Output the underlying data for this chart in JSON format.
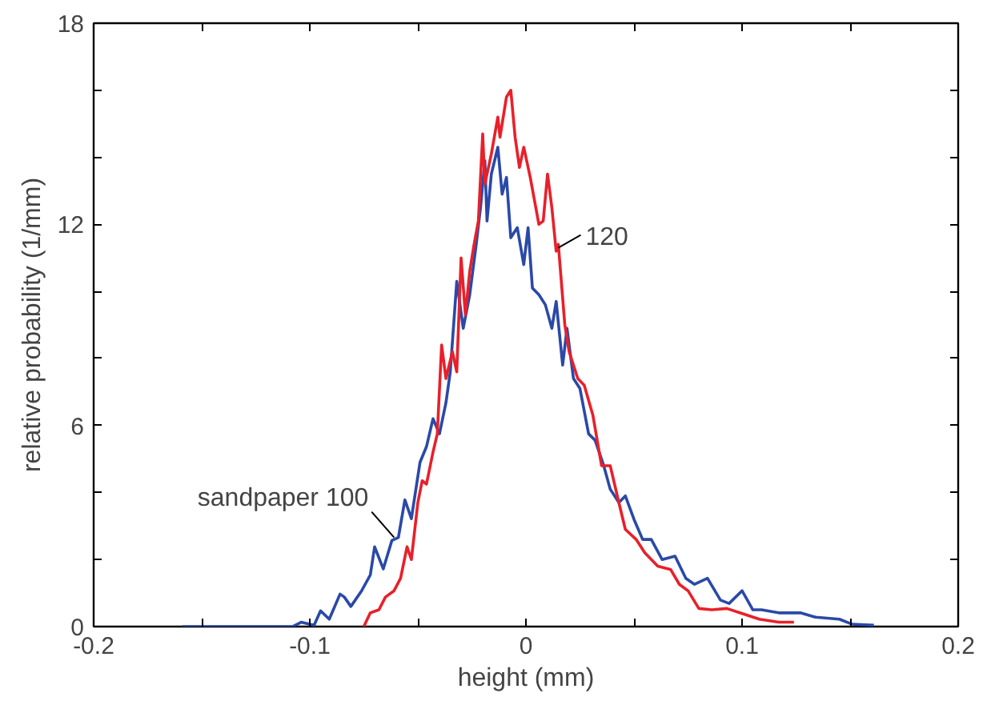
{
  "chart_data": {
    "type": "line",
    "xlabel": "height (mm)",
    "ylabel": "relative probability (1/mm)",
    "xlim": [
      -0.2,
      0.2
    ],
    "ylim": [
      0,
      18
    ],
    "xticks": [
      -0.2,
      {
        "value": -0.15,
        "label": null
      },
      -0.1,
      {
        "value": -0.05,
        "label": null
      },
      0,
      {
        "value": 0.05,
        "label": null
      },
      0.1,
      {
        "value": 0.15,
        "label": null
      },
      0.2
    ],
    "yticks": [
      0,
      {
        "value": 2,
        "label": null
      },
      {
        "value": 4,
        "label": null
      },
      6,
      {
        "value": 8,
        "label": null
      },
      {
        "value": 10,
        "label": null
      },
      12,
      {
        "value": 14,
        "label": null
      },
      {
        "value": 16,
        "label": null
      },
      18
    ],
    "line_style": "solid",
    "annotations": [
      {
        "text": "sandpaper 100",
        "x": -0.061,
        "y": 2.66
      },
      {
        "text": "120",
        "x": 0.015,
        "y": 11.3
      }
    ],
    "series": [
      {
        "color": "#2a49a8",
        "x": [
          -0.159,
          -0.108,
          -0.104,
          -0.098,
          -0.095,
          -0.091,
          -0.086,
          -0.084,
          -0.081,
          -0.076,
          -0.072,
          -0.07,
          -0.066,
          -0.062,
          -0.059,
          -0.056,
          -0.053,
          -0.049,
          -0.046,
          -0.043,
          -0.04,
          -0.037,
          -0.035,
          -0.032,
          -0.029,
          -0.026,
          -0.023,
          -0.021,
          -0.019,
          -0.018,
          -0.016,
          -0.013,
          -0.011,
          -0.009,
          -0.007,
          -0.004,
          -0.001,
          0.001,
          0.003,
          0.006,
          0.009,
          0.012,
          0.014,
          0.017,
          0.019,
          0.022,
          0.025,
          0.029,
          0.032,
          0.036,
          0.039,
          0.043,
          0.046,
          0.05,
          0.054,
          0.058,
          0.063,
          0.069,
          0.074,
          0.078,
          0.084,
          0.09,
          0.094,
          0.1,
          0.105,
          0.109,
          0.117,
          0.127,
          0.134,
          0.145,
          0.151,
          0.161
        ],
        "values": [
          0,
          0,
          0.13,
          0.04,
          0.47,
          0.22,
          0.97,
          0.88,
          0.6,
          1.07,
          1.54,
          2.38,
          1.72,
          2.57,
          2.66,
          3.78,
          3.22,
          4.9,
          5.37,
          6.2,
          5.75,
          6.68,
          7.6,
          10.3,
          8.9,
          9.9,
          11.4,
          12.5,
          13.9,
          12.1,
          13.5,
          14.3,
          12.9,
          13.4,
          11.6,
          11.9,
          10.8,
          11.9,
          10.1,
          9.9,
          9.6,
          8.9,
          9.7,
          7.8,
          8.9,
          7.4,
          7.1,
          5.75,
          5.56,
          4.8,
          4.1,
          3.7,
          3.9,
          3.2,
          2.6,
          2.6,
          2.0,
          2.1,
          1.44,
          1.26,
          1.44,
          0.79,
          0.69,
          1.07,
          0.5,
          0.5,
          0.41,
          0.41,
          0.28,
          0.22,
          0.07,
          0.04
        ]
      },
      {
        "color": "#e8202a",
        "x": [
          -0.075,
          -0.072,
          -0.068,
          -0.065,
          -0.061,
          -0.058,
          -0.055,
          -0.053,
          -0.05,
          -0.048,
          -0.046,
          -0.043,
          -0.041,
          -0.039,
          -0.037,
          -0.034,
          -0.032,
          -0.03,
          -0.028,
          -0.026,
          -0.024,
          -0.022,
          -0.02,
          -0.019,
          -0.016,
          -0.013,
          -0.012,
          -0.009,
          -0.007,
          -0.005,
          -0.003,
          -0.001,
          0.002,
          0.006,
          0.008,
          0.01,
          0.012,
          0.014,
          0.015,
          0.018,
          0.02,
          0.024,
          0.027,
          0.031,
          0.035,
          0.039,
          0.043,
          0.046,
          0.051,
          0.055,
          0.061,
          0.067,
          0.071,
          0.075,
          0.08,
          0.086,
          0.093,
          0.099,
          0.108,
          0.117,
          0.124
        ],
        "values": [
          0,
          0.41,
          0.5,
          0.88,
          1.07,
          1.44,
          2.38,
          2.0,
          3.7,
          4.35,
          4.25,
          5.2,
          5.75,
          8.4,
          7.4,
          8.2,
          7.6,
          11.0,
          9.3,
          10.6,
          11.4,
          12.1,
          14.7,
          13.2,
          14.1,
          15.2,
          14.6,
          15.8,
          16.0,
          14.6,
          13.7,
          14.3,
          13.4,
          12.0,
          12.1,
          13.5,
          12.5,
          11.2,
          11.4,
          9.0,
          8.2,
          7.4,
          7.2,
          6.3,
          4.8,
          4.8,
          3.7,
          2.9,
          2.6,
          2.2,
          1.8,
          1.7,
          1.26,
          1.07,
          0.54,
          0.5,
          0.54,
          0.41,
          0.22,
          0.13,
          0.13
        ]
      }
    ]
  }
}
